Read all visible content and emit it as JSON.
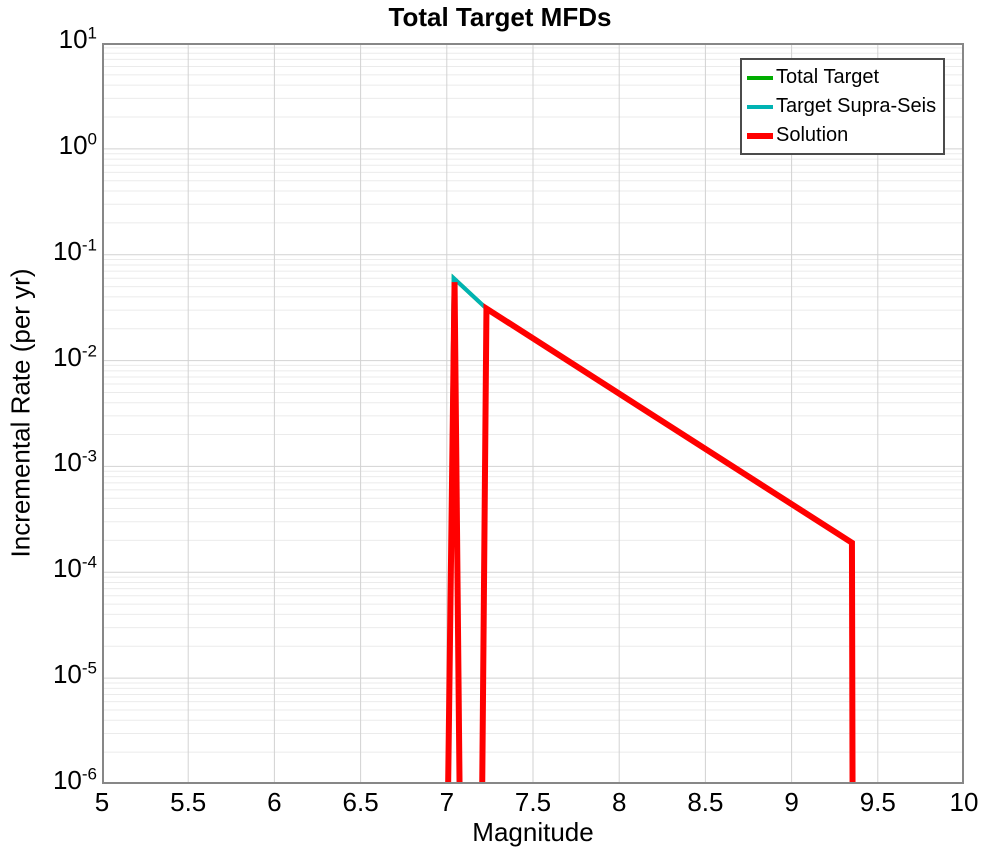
{
  "chart_data": {
    "type": "line",
    "title": "Total Target MFDs",
    "xlabel": "Magnitude",
    "ylabel": "Incremental Rate (per yr)",
    "x_axis": {
      "min": 5,
      "max": 10,
      "tick_values": [
        5,
        5.5,
        6,
        6.5,
        7,
        7.5,
        8,
        8.5,
        9,
        9.5,
        10
      ],
      "tick_labels": [
        "5",
        "5.5",
        "6",
        "6.5",
        "7",
        "7.5",
        "8",
        "8.5",
        "9",
        "9.5",
        "10"
      ]
    },
    "y_axis": {
      "scale": "log",
      "top_exponent": 1,
      "bottom_exponent": -6,
      "tick_exponents": [
        1,
        0,
        -1,
        -2,
        -3,
        -4,
        -5,
        -6
      ],
      "tick_base": "10"
    },
    "grid": {
      "major_color": "#d2d2d2",
      "minor_color": "#ebebeb",
      "frame_color": "#878787"
    },
    "legend": {
      "position": "top-right",
      "border_color": "#4b4b4b"
    },
    "series": [
      {
        "name": "Total Target",
        "color": "#00ad00",
        "stroke_width": 4,
        "points": [
          [
            7.0,
            1e-07
          ],
          [
            7.04,
            0.06
          ],
          [
            7.23,
            0.031
          ],
          [
            9.35,
            0.00019
          ],
          [
            9.355,
            1e-07
          ]
        ]
      },
      {
        "name": "Target Supra-Seis",
        "color": "#00b3b3",
        "stroke_width": 4,
        "points": [
          [
            7.0,
            1e-07
          ],
          [
            7.04,
            0.06
          ],
          [
            7.23,
            0.031
          ],
          [
            9.35,
            0.00019
          ],
          [
            9.355,
            1e-07
          ]
        ]
      },
      {
        "name": "Solution",
        "color": "#ff0000",
        "stroke_width": 6,
        "points": [
          [
            7.0,
            1e-07
          ],
          [
            7.045,
            0.055
          ],
          [
            7.08,
            1e-07
          ],
          [
            7.2,
            1e-07
          ],
          [
            7.23,
            0.031
          ],
          [
            9.35,
            0.00019
          ],
          [
            9.355,
            1e-07
          ]
        ]
      }
    ]
  }
}
